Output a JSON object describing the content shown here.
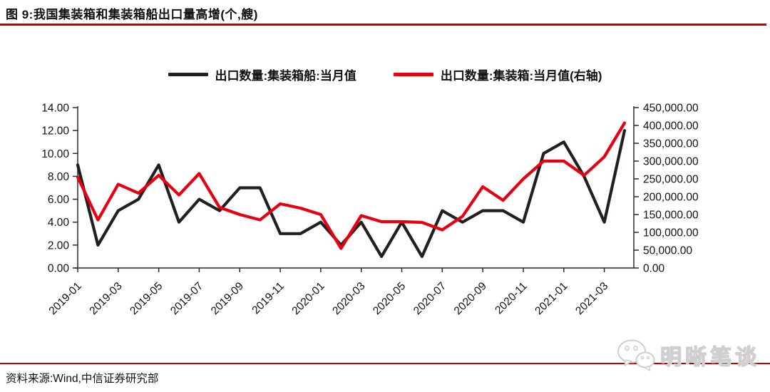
{
  "figure": {
    "title": "图 9:我国集装箱和集装箱船出口量高增(个,艘)",
    "source": "资料来源:Wind,中信证券研究部",
    "watermark": "明晰笔谈"
  },
  "colors": {
    "ship_line": "#231f20",
    "container_line": "#e60012",
    "rule_red": "#c00000",
    "axis": "#2b2b2b",
    "tick_label": "#111111"
  },
  "legend": [
    {
      "label": "出口数量:集装箱船:当月值",
      "color": "#231f20"
    },
    {
      "label": "出口数量:集装箱:当月值(右轴)",
      "color": "#e60012"
    }
  ],
  "chart_data": {
    "type": "line",
    "title": "图 9:我国集装箱和集装箱船出口量高增(个,艘)",
    "x": [
      "2019-01",
      "2019-02",
      "2019-03",
      "2019-04",
      "2019-05",
      "2019-06",
      "2019-07",
      "2019-08",
      "2019-09",
      "2019-10",
      "2019-11",
      "2019-12",
      "2020-01",
      "2020-02",
      "2020-03",
      "2020-04",
      "2020-05",
      "2020-06",
      "2020-07",
      "2020-08",
      "2020-09",
      "2020-10",
      "2020-11",
      "2020-12",
      "2021-01",
      "2021-02",
      "2021-03",
      "2021-04"
    ],
    "x_tick_labels": [
      "2019-01",
      "2019-03",
      "2019-05",
      "2019-07",
      "2019-09",
      "2019-11",
      "2020-01",
      "2020-03",
      "2020-05",
      "2020-07",
      "2020-09",
      "2020-11",
      "2021-01",
      "2021-03"
    ],
    "x_tick_every": 2,
    "series": [
      {
        "name": "出口数量:集装箱船:当月值",
        "axis": "left",
        "color": "#231f20",
        "values": [
          9,
          2,
          5,
          6,
          9,
          4,
          6,
          5,
          7,
          7,
          3,
          3,
          4,
          2,
          4,
          1,
          4,
          1,
          5,
          4,
          5,
          5,
          4,
          10,
          11,
          8,
          4,
          12
        ]
      },
      {
        "name": "出口数量:集装箱:当月值(右轴)",
        "axis": "right",
        "color": "#e60012",
        "values": [
          255000,
          135000,
          235000,
          210000,
          260000,
          205000,
          265000,
          170000,
          150000,
          135000,
          180000,
          168000,
          150000,
          55000,
          147000,
          130000,
          130000,
          128000,
          107000,
          145000,
          228000,
          190000,
          250000,
          300000,
          300000,
          260000,
          312000,
          407000
        ]
      }
    ],
    "left_axis": {
      "min": 0,
      "max": 14,
      "step": 2,
      "tick_labels": [
        "0.00",
        "2.00",
        "4.00",
        "6.00",
        "8.00",
        "10.00",
        "12.00",
        "14.00"
      ]
    },
    "right_axis": {
      "min": 0,
      "max": 450000,
      "step": 50000,
      "tick_labels": [
        "0.00",
        "50,000.00",
        "100,000.00",
        "150,000.00",
        "200,000.00",
        "250,000.00",
        "300,000.00",
        "350,000.00",
        "400,000.00",
        "450,000.00"
      ]
    },
    "grid": false,
    "legend_position": "top"
  }
}
